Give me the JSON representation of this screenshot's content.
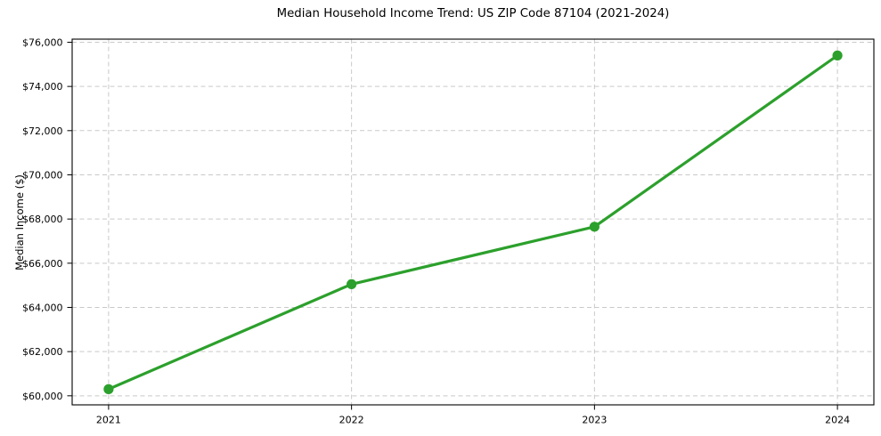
{
  "figure": {
    "background": "#ffffff"
  },
  "chart_data": {
    "type": "line",
    "title": "Median Household Income Trend: US ZIP Code 87104 (2021-2024)",
    "xlabel": "",
    "ylabel": "Median Income ($)",
    "categories": [
      "2021",
      "2022",
      "2023",
      "2024"
    ],
    "series": [
      {
        "name": "Median Household Income",
        "values": [
          60300,
          65050,
          67650,
          75400
        ]
      }
    ],
    "yticks": [
      60000,
      62000,
      64000,
      66000,
      68000,
      70000,
      72000,
      74000,
      76000
    ],
    "ytick_labels": [
      "$60,000",
      "$62,000",
      "$64,000",
      "$66,000",
      "$68,000",
      "$70,000",
      "$72,000",
      "$74,000",
      "$76,000"
    ],
    "ylim": [
      59590,
      76140
    ],
    "grid": true,
    "grid_axis": "both",
    "grid_style": "dashed",
    "legend_position": "none",
    "colors": {
      "line": "#2ca02c",
      "marker": "#2ca02c",
      "grid": "#c9c9c9",
      "spine": "#000000",
      "text": "#000000"
    },
    "marker": "circle"
  }
}
